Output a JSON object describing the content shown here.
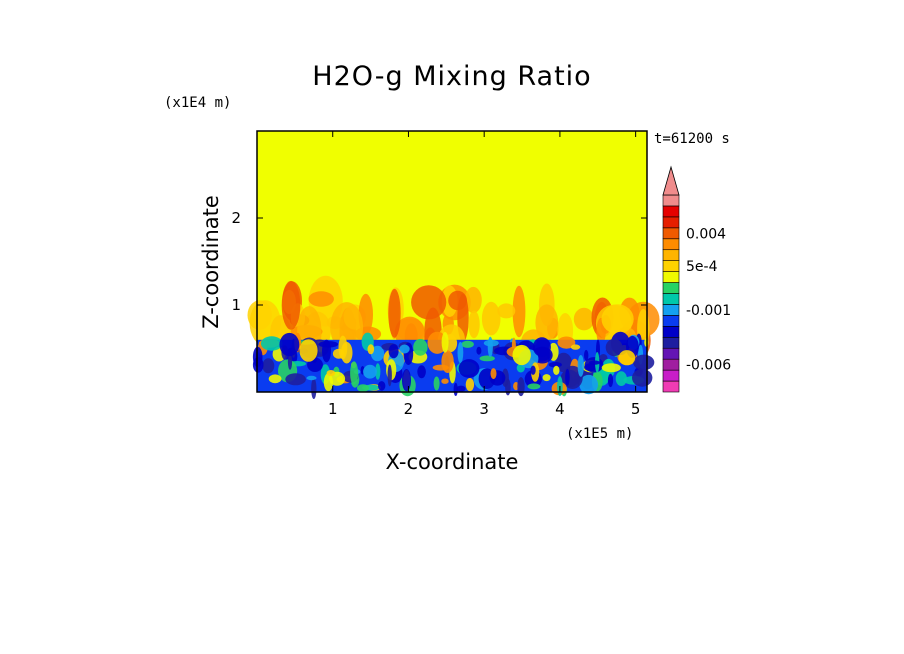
{
  "chart_data": {
    "type": "heatmap",
    "title": "H2O-g Mixing Ratio",
    "xlabel": "X-coordinate",
    "ylabel": "Z-coordinate",
    "x_unit": "(x1E5 m)",
    "y_unit": "(x1E4 m)",
    "time_label": "t=61200 s",
    "xlim": [
      0,
      5.15
    ],
    "ylim": [
      0,
      3.0
    ],
    "x_ticks": [
      1,
      2,
      3,
      4,
      5
    ],
    "y_ticks": [
      1,
      2
    ],
    "background_value": 0.0,
    "layers": {
      "lower_layer_top": 0.6,
      "plume_top": 1.07
    },
    "colorbar": {
      "has_overflow_arrow": true,
      "colors": [
        "#f03cb4",
        "#c81ec8",
        "#a01ea0",
        "#6414b4",
        "#1e1ea0",
        "#0000c8",
        "#0a3cf0",
        "#14a0f0",
        "#00c8aa",
        "#28d264",
        "#f0fa00",
        "#ffd200",
        "#ffb400",
        "#ff8c00",
        "#f05a00",
        "#e61e00",
        "#e60000",
        "#f08c8c"
      ],
      "labels": [
        {
          "text": "0.004",
          "index": 14
        },
        {
          "text": "5e-4",
          "index": 11
        },
        {
          "text": "-0.001",
          "index": 7
        },
        {
          "text": "-0.006",
          "index": 2
        }
      ]
    },
    "colors": {
      "background": "#f0ff00",
      "lower_layer": "#0a3cf0"
    }
  }
}
